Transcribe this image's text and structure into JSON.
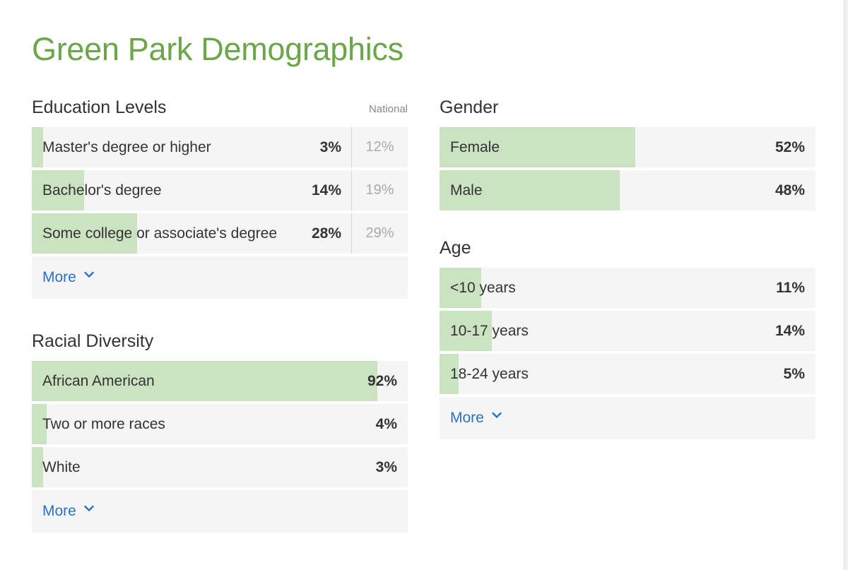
{
  "title": "Green Park Demographics",
  "education": {
    "title": "Education Levels",
    "national_label": "National",
    "rows": [
      {
        "label": "Master's degree or higher",
        "pct": "3%",
        "national": "12%",
        "value": 3
      },
      {
        "label": "Bachelor's degree",
        "pct": "14%",
        "national": "19%",
        "value": 14
      },
      {
        "label": "Some college or associate's degree",
        "pct": "28%",
        "national": "29%",
        "value": 28
      }
    ],
    "more": "More"
  },
  "racial": {
    "title": "Racial Diversity",
    "rows": [
      {
        "label": "African American",
        "pct": "92%",
        "value": 92
      },
      {
        "label": "Two or more races",
        "pct": "4%",
        "value": 4
      },
      {
        "label": "White",
        "pct": "3%",
        "value": 3
      }
    ],
    "more": "More"
  },
  "gender": {
    "title": "Gender",
    "rows": [
      {
        "label": "Female",
        "pct": "52%",
        "value": 52
      },
      {
        "label": "Male",
        "pct": "48%",
        "value": 48
      }
    ]
  },
  "age": {
    "title": "Age",
    "rows": [
      {
        "label": "<10 years",
        "pct": "11%",
        "value": 11
      },
      {
        "label": "10-17 years",
        "pct": "14%",
        "value": 14
      },
      {
        "label": "18-24 years",
        "pct": "5%",
        "value": 5
      }
    ],
    "more": "More"
  },
  "colors": {
    "title": "#6ba648",
    "bar": "#cbe3c0",
    "row_bg": "#f5f5f5",
    "link": "#2b72c2"
  }
}
